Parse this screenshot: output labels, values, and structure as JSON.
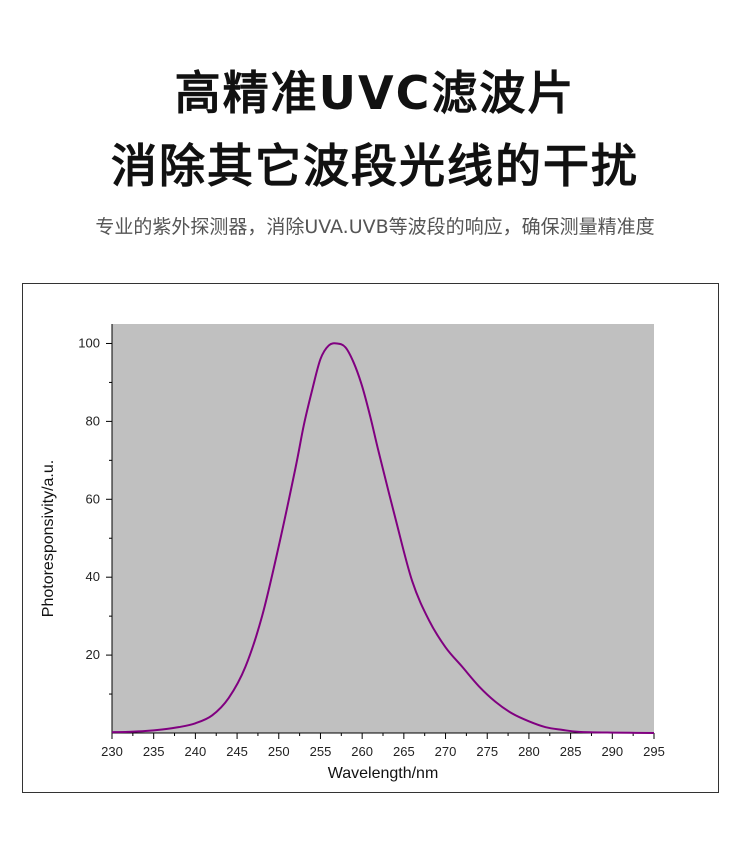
{
  "header": {
    "title_line1": "高精准UVC滤波片",
    "title_line2": "消除其它波段光线的干扰",
    "subtitle": "专业的紫外探测器，消除UVA.UVB等波段的响应，确保测量精准度"
  },
  "colors": {
    "plot_background": "#c0c0c0",
    "curve": "#800080",
    "axis": "#000000"
  },
  "chart_data": {
    "type": "line",
    "title": "",
    "xlabel": "Wavelength/nm",
    "ylabel": "Photoresponsivity/a.u.",
    "xlim": [
      230,
      295
    ],
    "ylim": [
      0,
      105
    ],
    "x_ticks": [
      230,
      235,
      240,
      245,
      250,
      255,
      260,
      265,
      270,
      275,
      280,
      285,
      290,
      295
    ],
    "y_ticks": [
      20,
      40,
      60,
      80,
      100
    ],
    "grid": false,
    "legend": "none",
    "series": [
      {
        "x": [
          230,
          232,
          234,
          236,
          238,
          240,
          242,
          244,
          246,
          248,
          250,
          252,
          253,
          254,
          255,
          256,
          257,
          258,
          259,
          260,
          261,
          262,
          264,
          266,
          268,
          270,
          272,
          274,
          276,
          278,
          280,
          282,
          284,
          286,
          290,
          295
        ],
        "values": [
          0.2,
          0.3,
          0.5,
          0.9,
          1.5,
          2.5,
          4.5,
          9,
          17,
          30,
          48,
          68,
          79,
          88,
          96,
          99.5,
          100,
          99,
          95,
          89,
          81,
          72,
          55,
          39,
          29,
          22,
          17,
          12,
          8,
          5,
          3,
          1.5,
          0.8,
          0.3,
          0.1,
          0
        ]
      }
    ]
  }
}
